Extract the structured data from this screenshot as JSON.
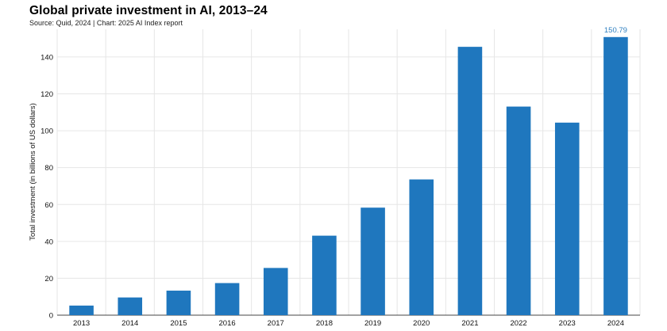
{
  "chart_data": {
    "type": "bar",
    "title": "Global private investment in AI, 2013–24",
    "subtitle": "Source: Quid, 2024 | Chart: 2025 AI Index report",
    "xlabel": "",
    "ylabel": "Total investment (in billions of US dollars)",
    "categories": [
      "2013",
      "2014",
      "2015",
      "2016",
      "2017",
      "2018",
      "2019",
      "2020",
      "2021",
      "2022",
      "2023",
      "2024"
    ],
    "values": [
      5.2,
      9.6,
      13.3,
      17.4,
      25.6,
      43.1,
      58.3,
      73.6,
      145.5,
      113.1,
      104.4,
      150.79
    ],
    "ylim": [
      0,
      155
    ],
    "yticks": [
      0,
      20,
      40,
      60,
      80,
      100,
      120,
      140
    ],
    "data_labels": [
      {
        "index": 11,
        "text": "150.79"
      }
    ],
    "grid": true,
    "colors": {
      "bar": "#1f77be",
      "label": "#2f7fc0",
      "grid": "#e6e6e6"
    }
  }
}
